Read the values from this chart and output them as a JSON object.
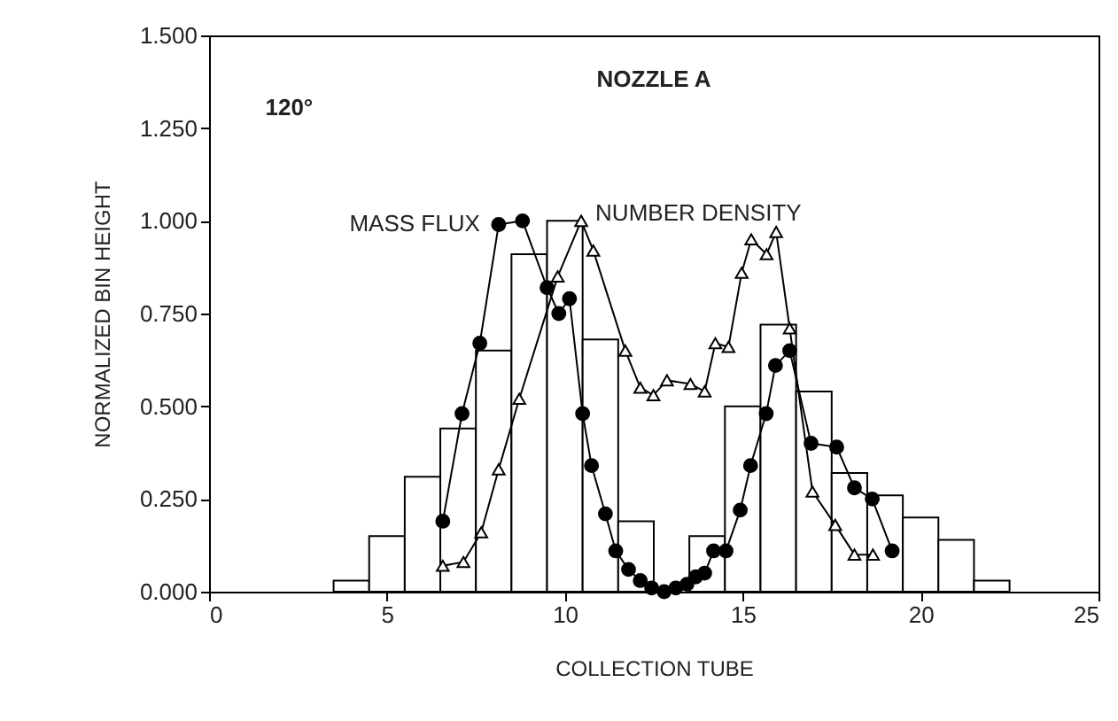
{
  "chart_data": {
    "type": "histogram",
    "annotations": [
      "NOZZLE A",
      "120°"
    ],
    "xlabel": "COLLECTION TUBE",
    "ylabel": "NORMALIZED BIN HEIGHT",
    "bins": [
      3.5,
      4.5,
      5.5,
      6.5,
      7.5,
      8.5,
      9.5,
      10.5,
      11.5,
      12.5,
      13.5,
      14.5,
      15.5,
      16.5,
      17.5,
      18.5,
      19.5,
      20.5,
      21.5,
      22.5
    ],
    "values": [
      0.03,
      0.15,
      0.31,
      0.44,
      0.65,
      0.91,
      1.0,
      0.68,
      0.19,
      0,
      0.15,
      0.5,
      0.72,
      0.54,
      0.32,
      0.26,
      0.2,
      0.14,
      0.03
    ],
    "color": "#ffffff",
    "series": [
      {
        "name": "MASS FLUX",
        "type": "line",
        "marker": "circle",
        "color": "#000000",
        "x": [
          6.57,
          7.11,
          7.61,
          8.14,
          8.81,
          9.5,
          9.83,
          10.13,
          10.5,
          10.75,
          11.14,
          11.43,
          11.79,
          12.12,
          12.44,
          12.79,
          13.12,
          13.43,
          13.68,
          13.93,
          14.18,
          14.53,
          14.93,
          15.22,
          15.66,
          15.92,
          16.32,
          16.92,
          17.64,
          18.14,
          18.64,
          19.2
        ],
        "values": [
          0.19,
          0.48,
          0.67,
          0.99,
          1.0,
          0.82,
          0.75,
          0.79,
          0.48,
          0.34,
          0.21,
          0.11,
          0.06,
          0.03,
          0.01,
          0,
          0.01,
          0.02,
          0.04,
          0.05,
          0.11,
          0.11,
          0.22,
          0.34,
          0.48,
          0.61,
          0.65,
          0.4,
          0.39,
          0.28,
          0.25,
          0.11
        ]
      },
      {
        "name": "NUMBER DENSITY",
        "type": "line",
        "marker": "triangle",
        "color": "#000000",
        "x": [
          6.57,
          7.15,
          7.65,
          8.14,
          8.72,
          9.8,
          10.46,
          10.8,
          11.7,
          12.12,
          12.49,
          12.87,
          13.53,
          13.93,
          14.23,
          14.6,
          14.97,
          15.24,
          15.67,
          15.94,
          16.32,
          16.96,
          17.6,
          18.14,
          18.66
        ],
        "values": [
          0.07,
          0.08,
          0.16,
          0.33,
          0.52,
          0.85,
          1.0,
          0.92,
          0.65,
          0.55,
          0.53,
          0.57,
          0.56,
          0.54,
          0.67,
          0.66,
          0.86,
          0.95,
          0.91,
          0.97,
          0.71,
          0.27,
          0.18,
          0.1,
          0.1
        ]
      }
    ],
    "xlim": [
      0,
      25
    ],
    "xticks": [
      0,
      5,
      10,
      15,
      20,
      25
    ],
    "ylim": [
      0,
      1.5
    ],
    "yticks": [
      {
        "value": 0,
        "label": "0.000"
      },
      {
        "value": 0.25,
        "label": "0.250"
      },
      {
        "value": 0.5,
        "label": "0.500"
      },
      {
        "value": 0.75,
        "label": "0.750"
      },
      {
        "value": 1,
        "label": "1.000"
      },
      {
        "value": 1.25,
        "label": "1.250"
      },
      {
        "value": 1.5,
        "label": "1.500"
      }
    ],
    "grid": false,
    "legend": false
  }
}
